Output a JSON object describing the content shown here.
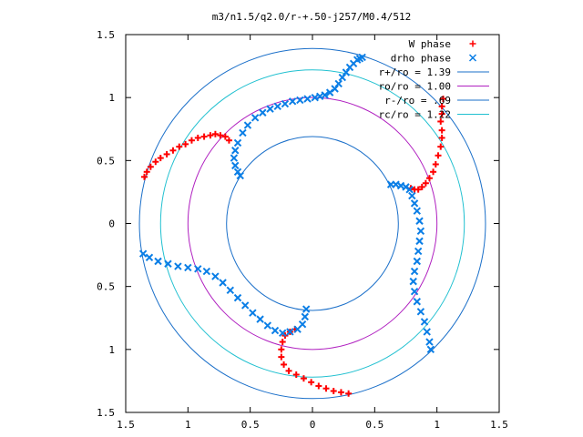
{
  "chart_data": {
    "type": "scatter",
    "title": "m3/n1.5/q2.0/r-+.50-j257/M0.4/512",
    "xlabel": "",
    "ylabel": "",
    "xlim": [
      -1.5,
      1.5
    ],
    "ylim": [
      -1.5,
      1.5
    ],
    "x_ticks": [
      -1.5,
      -1,
      -0.5,
      0,
      0.5,
      1,
      1.5
    ],
    "x_tick_labels": [
      "1.5",
      "1",
      "0.5",
      "0",
      "0.5",
      "1",
      "1.5"
    ],
    "y_ticks": [
      -1.5,
      -1,
      -0.5,
      0,
      0.5,
      1,
      1.5
    ],
    "y_tick_labels": [
      "1.5",
      "1",
      "0.5",
      "0",
      "0.5",
      "1",
      "1.5"
    ],
    "grid": false,
    "legend_position": "top-right",
    "series": [
      {
        "name": "W phase",
        "marker": "plus",
        "color": "#ff0000",
        "points": [
          [
            -1.35,
            0.37
          ],
          [
            -1.33,
            0.41
          ],
          [
            -1.3,
            0.45
          ],
          [
            -1.26,
            0.49
          ],
          [
            -1.22,
            0.52
          ],
          [
            -1.17,
            0.55
          ],
          [
            -1.12,
            0.58
          ],
          [
            -1.07,
            0.61
          ],
          [
            -1.02,
            0.63
          ],
          [
            -0.97,
            0.66
          ],
          [
            -0.92,
            0.68
          ],
          [
            -0.87,
            0.69
          ],
          [
            -0.82,
            0.7
          ],
          [
            -0.78,
            0.71
          ],
          [
            -0.74,
            0.7
          ],
          [
            -0.7,
            0.69
          ],
          [
            -0.67,
            0.66
          ],
          [
            1.05,
            0.99
          ],
          [
            1.04,
            0.93
          ],
          [
            1.04,
            0.87
          ],
          [
            1.03,
            0.81
          ],
          [
            1.04,
            0.74
          ],
          [
            1.04,
            0.68
          ],
          [
            1.03,
            0.61
          ],
          [
            1.01,
            0.54
          ],
          [
            0.99,
            0.47
          ],
          [
            0.97,
            0.41
          ],
          [
            0.94,
            0.36
          ],
          [
            0.91,
            0.32
          ],
          [
            0.88,
            0.29
          ],
          [
            0.85,
            0.27
          ],
          [
            0.82,
            0.27
          ],
          [
            0.79,
            0.28
          ],
          [
            0.29,
            -1.35
          ],
          [
            0.23,
            -1.34
          ],
          [
            0.17,
            -1.33
          ],
          [
            0.11,
            -1.31
          ],
          [
            0.05,
            -1.29
          ],
          [
            -0.01,
            -1.26
          ],
          [
            -0.07,
            -1.23
          ],
          [
            -0.13,
            -1.2
          ],
          [
            -0.19,
            -1.17
          ],
          [
            -0.23,
            -1.12
          ],
          [
            -0.25,
            -1.06
          ],
          [
            -0.25,
            -1.0
          ],
          [
            -0.24,
            -0.94
          ],
          [
            -0.22,
            -0.89
          ],
          [
            -0.18,
            -0.86
          ],
          [
            -0.14,
            -0.84
          ]
        ]
      },
      {
        "name": "drho phase",
        "marker": "cross",
        "color": "#0a7ee6",
        "points": [
          [
            0.4,
            1.32
          ],
          [
            0.38,
            1.31
          ],
          [
            0.36,
            1.3
          ],
          [
            0.33,
            1.27
          ],
          [
            0.3,
            1.24
          ],
          [
            0.27,
            1.2
          ],
          [
            0.24,
            1.16
          ],
          [
            0.21,
            1.11
          ],
          [
            0.18,
            1.07
          ],
          [
            0.14,
            1.04
          ],
          [
            0.1,
            1.02
          ],
          [
            0.06,
            1.01
          ],
          [
            0.02,
            1.0
          ],
          [
            -0.04,
            0.99
          ],
          [
            -0.1,
            0.98
          ],
          [
            -0.16,
            0.97
          ],
          [
            -0.22,
            0.95
          ],
          [
            -0.28,
            0.93
          ],
          [
            -0.34,
            0.91
          ],
          [
            -0.4,
            0.88
          ],
          [
            -0.46,
            0.84
          ],
          [
            -0.52,
            0.78
          ],
          [
            -0.56,
            0.72
          ],
          [
            -0.6,
            0.64
          ],
          [
            -0.62,
            0.58
          ],
          [
            -0.63,
            0.52
          ],
          [
            -0.62,
            0.46
          ],
          [
            -0.6,
            0.41
          ],
          [
            -0.58,
            0.38
          ],
          [
            0.63,
            0.31
          ],
          [
            0.67,
            0.31
          ],
          [
            0.71,
            0.3
          ],
          [
            0.75,
            0.29
          ],
          [
            0.78,
            0.27
          ],
          [
            0.8,
            0.22
          ],
          [
            0.82,
            0.16
          ],
          [
            0.84,
            0.1
          ],
          [
            0.86,
            0.02
          ],
          [
            0.87,
            -0.06
          ],
          [
            0.86,
            -0.14
          ],
          [
            0.85,
            -0.22
          ],
          [
            0.84,
            -0.3
          ],
          [
            0.82,
            -0.38
          ],
          [
            0.81,
            -0.46
          ],
          [
            0.82,
            -0.54
          ],
          [
            0.84,
            -0.62
          ],
          [
            0.87,
            -0.7
          ],
          [
            0.9,
            -0.78
          ],
          [
            0.92,
            -0.86
          ],
          [
            0.94,
            -0.94
          ],
          [
            0.95,
            -1.0
          ],
          [
            -0.05,
            -0.68
          ],
          [
            -0.06,
            -0.74
          ],
          [
            -0.08,
            -0.8
          ],
          [
            -0.12,
            -0.84
          ],
          [
            -0.18,
            -0.86
          ],
          [
            -0.24,
            -0.87
          ],
          [
            -0.3,
            -0.85
          ],
          [
            -0.36,
            -0.81
          ],
          [
            -0.42,
            -0.76
          ],
          [
            -0.48,
            -0.71
          ],
          [
            -0.54,
            -0.65
          ],
          [
            -0.6,
            -0.59
          ],
          [
            -0.66,
            -0.53
          ],
          [
            -0.72,
            -0.47
          ],
          [
            -0.78,
            -0.42
          ],
          [
            -0.85,
            -0.38
          ],
          [
            -0.92,
            -0.36
          ],
          [
            -1.0,
            -0.35
          ],
          [
            -1.08,
            -0.34
          ],
          [
            -1.16,
            -0.32
          ],
          [
            -1.24,
            -0.3
          ],
          [
            -1.31,
            -0.27
          ],
          [
            -1.36,
            -0.24
          ]
        ]
      },
      {
        "name": "r+/ro = 1.39",
        "type": "circle",
        "radius": 1.39,
        "color": "#1a6fc9"
      },
      {
        "name": "ro/ro = 1.00",
        "type": "circle",
        "radius": 1.0,
        "color": "#b020c0"
      },
      {
        "name": "r-/ro = .69",
        "type": "circle",
        "radius": 0.69,
        "color": "#1a6fc9"
      },
      {
        "name": "rc/ro = 1.22",
        "type": "circle",
        "radius": 1.22,
        "color": "#20c0d0"
      }
    ]
  }
}
